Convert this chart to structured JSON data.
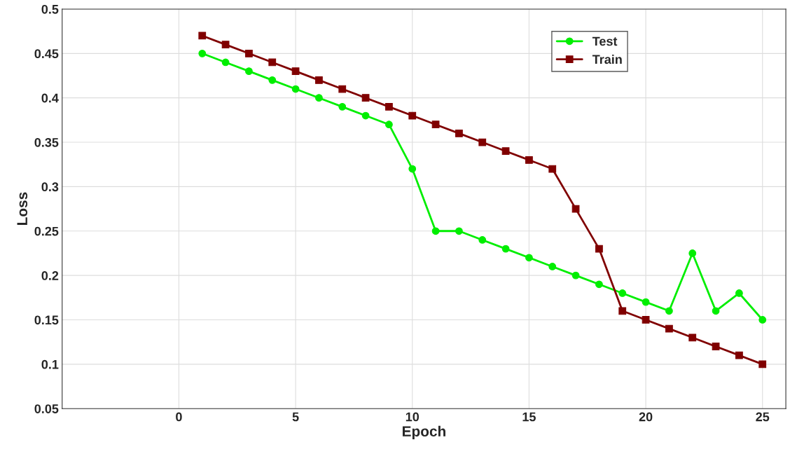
{
  "chart_data": {
    "type": "line",
    "xlabel": "Epoch",
    "ylabel": "Loss",
    "x": [
      1,
      2,
      3,
      4,
      5,
      6,
      7,
      8,
      9,
      10,
      11,
      12,
      13,
      14,
      15,
      16,
      17,
      18,
      19,
      20,
      21,
      22,
      23,
      24,
      25
    ],
    "series": [
      {
        "name": "Test",
        "color": "#00ee00",
        "marker": "circle",
        "values": [
          0.45,
          0.44,
          0.43,
          0.42,
          0.41,
          0.4,
          0.39,
          0.38,
          0.37,
          0.32,
          0.25,
          0.25,
          0.24,
          0.23,
          0.22,
          0.21,
          0.2,
          0.19,
          0.18,
          0.17,
          0.16,
          0.225,
          0.16,
          0.18,
          0.15
        ]
      },
      {
        "name": "Train",
        "color": "#800000",
        "marker": "square",
        "values": [
          0.47,
          0.46,
          0.45,
          0.44,
          0.43,
          0.42,
          0.41,
          0.4,
          0.39,
          0.38,
          0.37,
          0.36,
          0.35,
          0.34,
          0.33,
          0.32,
          0.275,
          0.23,
          0.16,
          0.15,
          0.14,
          0.13,
          0.12,
          0.11,
          0.1
        ]
      }
    ],
    "xlim": [
      -5,
      26
    ],
    "xticks": [
      0,
      5,
      10,
      15,
      20,
      25
    ],
    "ylim": [
      0.05,
      0.5
    ],
    "yticks": [
      0.05,
      0.1,
      0.15,
      0.2,
      0.25,
      0.3,
      0.35,
      0.4,
      0.45,
      0.5
    ],
    "grid": true,
    "legend": "top right",
    "line_style": "solid"
  }
}
